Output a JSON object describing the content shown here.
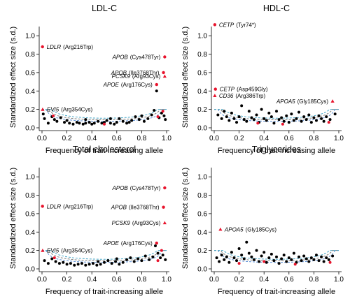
{
  "colors": {
    "highlight": "#e8132c",
    "point": "#000000",
    "threshold1": "#5b8fd6",
    "threshold2": "#7a7a7a",
    "threshold3": "#4aa8c8"
  },
  "chart_data": [
    {
      "type": "scatter",
      "title": "LDL-C",
      "xlabel": "Frequency of trait-increasing allele",
      "ylabel": "Standardized effect size (s.d.)",
      "xlim": [
        0,
        1
      ],
      "ylim": [
        0,
        1.1
      ],
      "x_ticks": [
        "0.0",
        "0.2",
        "0.4",
        "0.6",
        "0.8",
        "1.0"
      ],
      "y_ticks": [
        "0.0",
        "0.2",
        "0.4",
        "0.6",
        "0.8",
        "1.0"
      ],
      "highlighted": [
        {
          "x": 0.004,
          "y": 0.88,
          "gene": "LDLR",
          "variant": "(Arg216Trp)",
          "marker": "circle",
          "side": "right"
        },
        {
          "x": 0.005,
          "y": 0.2,
          "gene": "EVI5",
          "variant": "(Arg354Cys)",
          "marker": "triangle",
          "side": "right"
        },
        {
          "x": 0.985,
          "y": 0.77,
          "gene": "APOB",
          "variant": "(Cys478Tyr)",
          "marker": "circle",
          "side": "left"
        },
        {
          "x": 0.975,
          "y": 0.6,
          "gene": "APOB",
          "variant": "(Ile3768Thr)",
          "marker": "circle",
          "side": "left"
        },
        {
          "x": 0.985,
          "y": 0.56,
          "gene": "PCSK9",
          "variant": "(Arg93Cys)",
          "marker": "triangle",
          "side": "left"
        },
        {
          "x": 0.92,
          "y": 0.47,
          "gene": "APOE",
          "variant": "(Arg176Cys)",
          "marker": "circle",
          "side": "left"
        }
      ],
      "points": [
        {
          "x": 0.02,
          "y": 0.1
        },
        {
          "x": 0.05,
          "y": 0.05
        },
        {
          "x": 0.08,
          "y": 0.12
        },
        {
          "x": 0.1,
          "y": 0.09
        },
        {
          "x": 0.12,
          "y": 0.07
        },
        {
          "x": 0.15,
          "y": 0.11
        },
        {
          "x": 0.18,
          "y": 0.06
        },
        {
          "x": 0.2,
          "y": 0.08
        },
        {
          "x": 0.22,
          "y": 0.05
        },
        {
          "x": 0.25,
          "y": 0.04
        },
        {
          "x": 0.28,
          "y": 0.06
        },
        {
          "x": 0.3,
          "y": 0.05
        },
        {
          "x": 0.33,
          "y": 0.04
        },
        {
          "x": 0.35,
          "y": 0.05
        },
        {
          "x": 0.38,
          "y": 0.06
        },
        {
          "x": 0.4,
          "y": 0.04
        },
        {
          "x": 0.42,
          "y": 0.05
        },
        {
          "x": 0.45,
          "y": 0.07
        },
        {
          "x": 0.48,
          "y": 0.05
        },
        {
          "x": 0.5,
          "y": 0.06
        },
        {
          "x": 0.52,
          "y": 0.08
        },
        {
          "x": 0.55,
          "y": 0.05
        },
        {
          "x": 0.58,
          "y": 0.04
        },
        {
          "x": 0.6,
          "y": 0.06
        },
        {
          "x": 0.62,
          "y": 0.1
        },
        {
          "x": 0.65,
          "y": 0.07
        },
        {
          "x": 0.68,
          "y": 0.05
        },
        {
          "x": 0.7,
          "y": 0.06
        },
        {
          "x": 0.72,
          "y": 0.08
        },
        {
          "x": 0.75,
          "y": 0.12
        },
        {
          "x": 0.78,
          "y": 0.09
        },
        {
          "x": 0.8,
          "y": 0.13
        },
        {
          "x": 0.82,
          "y": 0.07
        },
        {
          "x": 0.85,
          "y": 0.1
        },
        {
          "x": 0.88,
          "y": 0.14
        },
        {
          "x": 0.9,
          "y": 0.19
        },
        {
          "x": 0.92,
          "y": 0.4
        },
        {
          "x": 0.94,
          "y": 0.11
        },
        {
          "x": 0.96,
          "y": 0.16
        },
        {
          "x": 0.98,
          "y": 0.13
        },
        {
          "x": 0.99,
          "y": 0.09
        },
        {
          "x": 0.01,
          "y": 0.15
        },
        {
          "x": 0.35,
          "y": 0.09
        },
        {
          "x": 0.55,
          "y": 0.1
        }
      ],
      "red_points": [
        {
          "x": 0.09,
          "y": 0.13
        },
        {
          "x": 0.93,
          "y": 0.12
        },
        {
          "x": 0.97,
          "y": 0.18
        },
        {
          "x": 0.5,
          "y": 0.04
        }
      ]
    },
    {
      "type": "scatter",
      "title": "HDL-C",
      "xlabel": "Frequency of trait-increasing allele",
      "ylabel": "Standardized effect size (s.d.)",
      "xlim": [
        0,
        1
      ],
      "ylim": [
        0,
        1.1
      ],
      "x_ticks": [
        "0.0",
        "0.2",
        "0.4",
        "0.6",
        "0.8",
        "1.0"
      ],
      "y_ticks": [
        "0.0",
        "0.2",
        "0.4",
        "0.6",
        "0.8",
        "1.0"
      ],
      "highlighted": [
        {
          "x": 0.005,
          "y": 1.12,
          "gene": "CETP",
          "variant": "(Tyr74*)",
          "marker": "circle",
          "side": "right"
        },
        {
          "x": 0.01,
          "y": 0.42,
          "gene": "CETP",
          "variant": "(Asp459Gly)",
          "marker": "circle",
          "side": "right"
        },
        {
          "x": 0.005,
          "y": 0.35,
          "gene": "CD36",
          "variant": "(Arg386Trp)",
          "marker": "triangle",
          "side": "right"
        },
        {
          "x": 0.95,
          "y": 0.29,
          "gene": "APOA5",
          "variant": "(Gly185Cys)",
          "marker": "triangle",
          "side": "left"
        }
      ],
      "points": [
        {
          "x": 0.03,
          "y": 0.14
        },
        {
          "x": 0.06,
          "y": 0.1
        },
        {
          "x": 0.08,
          "y": 0.18
        },
        {
          "x": 0.1,
          "y": 0.12
        },
        {
          "x": 0.12,
          "y": 0.08
        },
        {
          "x": 0.14,
          "y": 0.16
        },
        {
          "x": 0.16,
          "y": 0.1
        },
        {
          "x": 0.18,
          "y": 0.06
        },
        {
          "x": 0.2,
          "y": 0.12
        },
        {
          "x": 0.22,
          "y": 0.24
        },
        {
          "x": 0.24,
          "y": 0.09
        },
        {
          "x": 0.26,
          "y": 0.07
        },
        {
          "x": 0.28,
          "y": 0.18
        },
        {
          "x": 0.3,
          "y": 0.11
        },
        {
          "x": 0.32,
          "y": 0.09
        },
        {
          "x": 0.34,
          "y": 0.14
        },
        {
          "x": 0.36,
          "y": 0.06
        },
        {
          "x": 0.38,
          "y": 0.2
        },
        {
          "x": 0.4,
          "y": 0.1
        },
        {
          "x": 0.42,
          "y": 0.08
        },
        {
          "x": 0.44,
          "y": 0.16
        },
        {
          "x": 0.46,
          "y": 0.12
        },
        {
          "x": 0.48,
          "y": 0.05
        },
        {
          "x": 0.5,
          "y": 0.18
        },
        {
          "x": 0.52,
          "y": 0.09
        },
        {
          "x": 0.54,
          "y": 0.11
        },
        {
          "x": 0.56,
          "y": 0.07
        },
        {
          "x": 0.58,
          "y": 0.13
        },
        {
          "x": 0.6,
          "y": 0.06
        },
        {
          "x": 0.62,
          "y": 0.15
        },
        {
          "x": 0.64,
          "y": 0.08
        },
        {
          "x": 0.66,
          "y": 0.1
        },
        {
          "x": 0.68,
          "y": 0.17
        },
        {
          "x": 0.7,
          "y": 0.07
        },
        {
          "x": 0.72,
          "y": 0.12
        },
        {
          "x": 0.74,
          "y": 0.09
        },
        {
          "x": 0.76,
          "y": 0.14
        },
        {
          "x": 0.78,
          "y": 0.06
        },
        {
          "x": 0.8,
          "y": 0.11
        },
        {
          "x": 0.82,
          "y": 0.08
        },
        {
          "x": 0.84,
          "y": 0.13
        },
        {
          "x": 0.86,
          "y": 0.1
        },
        {
          "x": 0.88,
          "y": 0.07
        },
        {
          "x": 0.9,
          "y": 0.12
        },
        {
          "x": 0.93,
          "y": 0.09
        },
        {
          "x": 0.97,
          "y": 0.15
        }
      ],
      "red_points": [
        {
          "x": 0.35,
          "y": 0.05
        },
        {
          "x": 0.55,
          "y": 0.04
        },
        {
          "x": 0.92,
          "y": 0.06
        }
      ]
    },
    {
      "type": "scatter",
      "title": "Total cholesterol",
      "xlabel": "Frequency of trait-increasing allele",
      "ylabel": "Standardized effect size (s.d.)",
      "xlim": [
        0,
        1
      ],
      "ylim": [
        0,
        1.1
      ],
      "x_ticks": [
        "0.0",
        "0.2",
        "0.4",
        "0.6",
        "0.8",
        "1.0"
      ],
      "y_ticks": [
        "0.0",
        "0.2",
        "0.4",
        "0.6",
        "0.8",
        "1.0"
      ],
      "highlighted": [
        {
          "x": 0.004,
          "y": 0.68,
          "gene": "LDLR",
          "variant": "(Arg216Trp)",
          "marker": "circle",
          "side": "right"
        },
        {
          "x": 0.005,
          "y": 0.2,
          "gene": "EVI5",
          "variant": "(Arg354Cys)",
          "marker": "triangle",
          "side": "right"
        },
        {
          "x": 0.985,
          "y": 0.88,
          "gene": "APOB",
          "variant": "(Cys478Tyr)",
          "marker": "circle",
          "side": "left"
        },
        {
          "x": 0.975,
          "y": 0.67,
          "gene": "APOB",
          "variant": "(Ile3768Thr)",
          "marker": "circle",
          "side": "left"
        },
        {
          "x": 0.985,
          "y": 0.5,
          "gene": "PCSK9",
          "variant": "(Arg93Cys)",
          "marker": "triangle",
          "side": "left"
        },
        {
          "x": 0.92,
          "y": 0.28,
          "gene": "APOE",
          "variant": "(Arg176Cys)",
          "marker": "circle",
          "side": "left"
        }
      ],
      "points": [
        {
          "x": 0.02,
          "y": 0.09
        },
        {
          "x": 0.05,
          "y": 0.06
        },
        {
          "x": 0.08,
          "y": 0.11
        },
        {
          "x": 0.11,
          "y": 0.08
        },
        {
          "x": 0.14,
          "y": 0.06
        },
        {
          "x": 0.17,
          "y": 0.07
        },
        {
          "x": 0.2,
          "y": 0.05
        },
        {
          "x": 0.23,
          "y": 0.06
        },
        {
          "x": 0.26,
          "y": 0.04
        },
        {
          "x": 0.29,
          "y": 0.05
        },
        {
          "x": 0.32,
          "y": 0.06
        },
        {
          "x": 0.35,
          "y": 0.04
        },
        {
          "x": 0.38,
          "y": 0.05
        },
        {
          "x": 0.41,
          "y": 0.06
        },
        {
          "x": 0.44,
          "y": 0.04
        },
        {
          "x": 0.47,
          "y": 0.05
        },
        {
          "x": 0.5,
          "y": 0.07
        },
        {
          "x": 0.53,
          "y": 0.09
        },
        {
          "x": 0.56,
          "y": 0.06
        },
        {
          "x": 0.59,
          "y": 0.08
        },
        {
          "x": 0.62,
          "y": 0.05
        },
        {
          "x": 0.65,
          "y": 0.07
        },
        {
          "x": 0.68,
          "y": 0.1
        },
        {
          "x": 0.71,
          "y": 0.12
        },
        {
          "x": 0.74,
          "y": 0.08
        },
        {
          "x": 0.77,
          "y": 0.11
        },
        {
          "x": 0.8,
          "y": 0.09
        },
        {
          "x": 0.83,
          "y": 0.14
        },
        {
          "x": 0.86,
          "y": 0.1
        },
        {
          "x": 0.89,
          "y": 0.13
        },
        {
          "x": 0.91,
          "y": 0.25
        },
        {
          "x": 0.93,
          "y": 0.17
        },
        {
          "x": 0.95,
          "y": 0.12
        },
        {
          "x": 0.97,
          "y": 0.15
        },
        {
          "x": 0.99,
          "y": 0.1
        },
        {
          "x": 0.45,
          "y": 0.08
        },
        {
          "x": 0.6,
          "y": 0.11
        }
      ],
      "red_points": [
        {
          "x": 0.1,
          "y": 0.12
        },
        {
          "x": 0.93,
          "y": 0.09
        },
        {
          "x": 0.96,
          "y": 0.2
        }
      ]
    },
    {
      "type": "scatter",
      "title": "Triglycerides",
      "xlabel": "Frequency of trait-increasing allele",
      "ylabel": "Standardized effect size (s.d.)",
      "xlim": [
        0,
        1
      ],
      "ylim": [
        0,
        1.1
      ],
      "x_ticks": [
        "0.0",
        "0.2",
        "0.4",
        "0.6",
        "0.8",
        "1.0"
      ],
      "y_ticks": [
        "0.0",
        "0.2",
        "0.4",
        "0.6",
        "0.8",
        "1.0"
      ],
      "highlighted": [
        {
          "x": 0.05,
          "y": 0.43,
          "gene": "APOA5",
          "variant": "(Gly185Cys)",
          "marker": "triangle",
          "side": "right"
        }
      ],
      "points": [
        {
          "x": 0.02,
          "y": 0.12
        },
        {
          "x": 0.04,
          "y": 0.08
        },
        {
          "x": 0.06,
          "y": 0.15
        },
        {
          "x": 0.08,
          "y": 0.1
        },
        {
          "x": 0.1,
          "y": 0.13
        },
        {
          "x": 0.12,
          "y": 0.07
        },
        {
          "x": 0.14,
          "y": 0.18
        },
        {
          "x": 0.16,
          "y": 0.12
        },
        {
          "x": 0.18,
          "y": 0.09
        },
        {
          "x": 0.2,
          "y": 0.22
        },
        {
          "x": 0.22,
          "y": 0.15
        },
        {
          "x": 0.24,
          "y": 0.11
        },
        {
          "x": 0.26,
          "y": 0.29
        },
        {
          "x": 0.28,
          "y": 0.17
        },
        {
          "x": 0.3,
          "y": 0.13
        },
        {
          "x": 0.32,
          "y": 0.1
        },
        {
          "x": 0.34,
          "y": 0.2
        },
        {
          "x": 0.36,
          "y": 0.08
        },
        {
          "x": 0.38,
          "y": 0.14
        },
        {
          "x": 0.4,
          "y": 0.18
        },
        {
          "x": 0.42,
          "y": 0.07
        },
        {
          "x": 0.44,
          "y": 0.12
        },
        {
          "x": 0.46,
          "y": 0.16
        },
        {
          "x": 0.48,
          "y": 0.09
        },
        {
          "x": 0.5,
          "y": 0.13
        },
        {
          "x": 0.52,
          "y": 0.06
        },
        {
          "x": 0.54,
          "y": 0.11
        },
        {
          "x": 0.56,
          "y": 0.15
        },
        {
          "x": 0.58,
          "y": 0.08
        },
        {
          "x": 0.6,
          "y": 0.12
        },
        {
          "x": 0.62,
          "y": 0.1
        },
        {
          "x": 0.64,
          "y": 0.17
        },
        {
          "x": 0.66,
          "y": 0.07
        },
        {
          "x": 0.68,
          "y": 0.13
        },
        {
          "x": 0.7,
          "y": 0.09
        },
        {
          "x": 0.72,
          "y": 0.14
        },
        {
          "x": 0.74,
          "y": 0.11
        },
        {
          "x": 0.76,
          "y": 0.08
        },
        {
          "x": 0.78,
          "y": 0.12
        },
        {
          "x": 0.8,
          "y": 0.1
        },
        {
          "x": 0.82,
          "y": 0.15
        },
        {
          "x": 0.84,
          "y": 0.09
        },
        {
          "x": 0.86,
          "y": 0.13
        },
        {
          "x": 0.88,
          "y": 0.08
        },
        {
          "x": 0.9,
          "y": 0.12
        },
        {
          "x": 0.92,
          "y": 0.1
        },
        {
          "x": 0.95,
          "y": 0.14
        }
      ],
      "red_points": [
        {
          "x": 0.4,
          "y": 0.08
        },
        {
          "x": 0.65,
          "y": 0.05
        },
        {
          "x": 0.93,
          "y": 0.07
        },
        {
          "x": 0.2,
          "y": 0.06
        }
      ]
    }
  ]
}
